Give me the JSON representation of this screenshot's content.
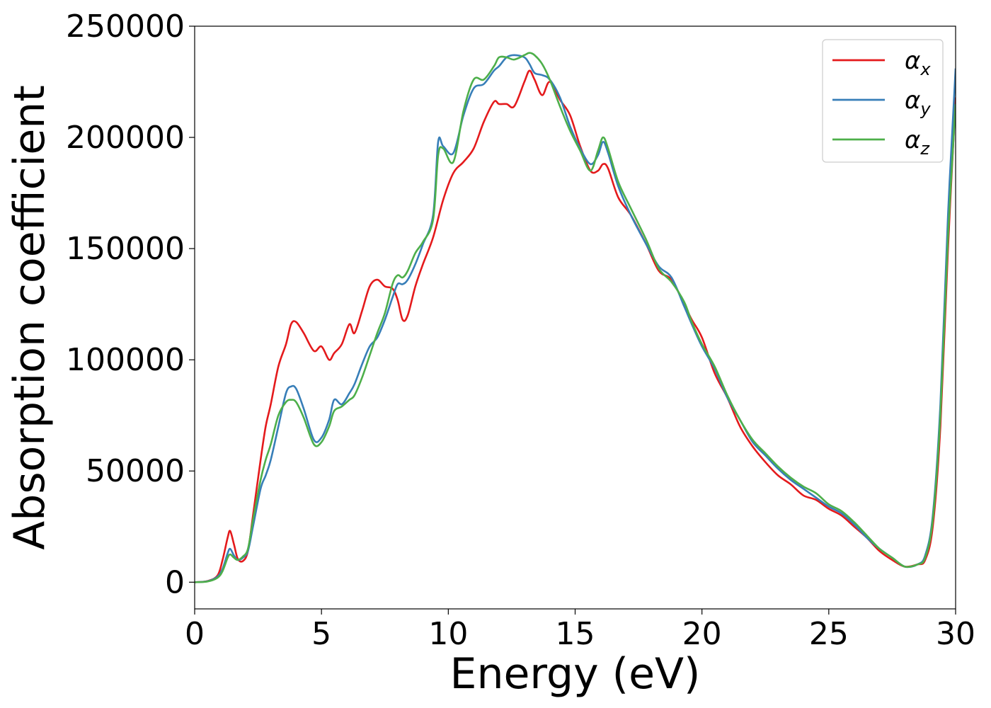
{
  "chart_data": {
    "type": "line",
    "title": "",
    "xlabel": "Energy (eV)",
    "ylabel": "Absorption coefficient",
    "xlim": [
      0,
      30
    ],
    "ylim": [
      -12000,
      250000
    ],
    "xticks": [
      0,
      5,
      10,
      15,
      20,
      25,
      30
    ],
    "yticks": [
      0,
      50000,
      100000,
      150000,
      200000,
      250000
    ],
    "xtick_labels": [
      "0",
      "5",
      "10",
      "15",
      "20",
      "25",
      "30"
    ],
    "ytick_labels": [
      "0",
      "50000",
      "100000",
      "150000",
      "200000",
      "250000"
    ],
    "grid": false,
    "legend_position": "top-right",
    "series": [
      {
        "name": "α",
        "subscript": "x",
        "color": "#e41a1c",
        "x": [
          0,
          0.5,
          0.9,
          1.1,
          1.3,
          1.4,
          1.55,
          1.7,
          1.9,
          2.1,
          2.3,
          2.6,
          2.8,
          3.0,
          3.3,
          3.6,
          3.8,
          4.0,
          4.3,
          4.7,
          5.0,
          5.3,
          5.5,
          5.8,
          6.1,
          6.3,
          6.6,
          6.9,
          7.2,
          7.5,
          7.8,
          8.0,
          8.2,
          8.4,
          8.7,
          9.0,
          9.4,
          9.8,
          10.2,
          10.6,
          11.0,
          11.4,
          11.8,
          12.0,
          12.3,
          12.6,
          13.0,
          13.2,
          13.4,
          13.7,
          14.0,
          14.4,
          14.8,
          15.2,
          15.6,
          15.9,
          16.1,
          16.3,
          16.7,
          17.2,
          17.8,
          18.3,
          18.8,
          19.3,
          19.6,
          20.0,
          20.5,
          21.0,
          21.5,
          22.0,
          22.5,
          23.0,
          23.5,
          24.0,
          24.5,
          25.0,
          25.5,
          26.0,
          26.5,
          27.0,
          27.5,
          28.0,
          28.5,
          28.8,
          29.1,
          29.4,
          29.7,
          30.0
        ],
        "values": [
          0,
          500,
          3000,
          10000,
          20000,
          23000,
          17000,
          10500,
          9500,
          14000,
          30000,
          55000,
          70000,
          80000,
          97000,
          107000,
          116000,
          117000,
          112000,
          104000,
          106000,
          100000,
          103000,
          107000,
          116000,
          112000,
          122000,
          133000,
          136000,
          133000,
          132000,
          127000,
          118000,
          120000,
          133000,
          143000,
          155000,
          172000,
          184000,
          189000,
          195000,
          207000,
          216000,
          215000,
          215000,
          214000,
          225000,
          230000,
          226000,
          219000,
          225000,
          217000,
          210000,
          196000,
          185000,
          185000,
          188000,
          186000,
          173000,
          165000,
          152000,
          140000,
          136000,
          125000,
          118000,
          110000,
          94000,
          83000,
          70000,
          61000,
          54000,
          48000,
          44000,
          39000,
          37000,
          33000,
          30000,
          25000,
          20000,
          14000,
          10000,
          7000,
          8000,
          10000,
          25000,
          70000,
          150000,
          218000
        ]
      },
      {
        "name": "α",
        "subscript": "y",
        "color": "#377eb8",
        "x": [
          0,
          0.5,
          0.9,
          1.1,
          1.3,
          1.4,
          1.55,
          1.7,
          1.9,
          2.1,
          2.3,
          2.6,
          2.8,
          3.0,
          3.3,
          3.6,
          3.8,
          4.0,
          4.3,
          4.7,
          5.0,
          5.3,
          5.5,
          5.8,
          6.1,
          6.3,
          6.6,
          6.9,
          7.2,
          7.5,
          7.8,
          8.0,
          8.2,
          8.4,
          8.7,
          9.0,
          9.4,
          9.6,
          9.8,
          10.2,
          10.6,
          11.0,
          11.4,
          11.8,
          12.0,
          12.3,
          12.6,
          13.0,
          13.2,
          13.4,
          13.7,
          14.0,
          14.4,
          14.8,
          15.2,
          15.6,
          15.9,
          16.1,
          16.3,
          16.7,
          17.2,
          17.8,
          18.3,
          18.8,
          19.3,
          19.6,
          20.0,
          20.5,
          21.0,
          21.5,
          22.0,
          22.5,
          23.0,
          23.5,
          24.0,
          24.5,
          25.0,
          25.5,
          26.0,
          26.5,
          27.0,
          27.5,
          28.0,
          28.5,
          28.8,
          29.1,
          29.4,
          29.7,
          30.0
        ],
        "values": [
          0,
          400,
          2500,
          6000,
          13000,
          15000,
          12000,
          10000,
          11000,
          14000,
          25000,
          42000,
          48000,
          55000,
          70000,
          85000,
          88000,
          87000,
          78000,
          64000,
          65000,
          73000,
          82000,
          80000,
          85000,
          89000,
          98000,
          106000,
          110000,
          118000,
          128000,
          134000,
          134000,
          136000,
          143000,
          152000,
          165000,
          198000,
          196000,
          193000,
          210000,
          222000,
          224000,
          230000,
          232000,
          236000,
          237000,
          236000,
          233000,
          229000,
          228000,
          226000,
          218000,
          205000,
          195000,
          188000,
          192000,
          198000,
          193000,
          178000,
          165000,
          152000,
          142000,
          137000,
          124000,
          116000,
          106000,
          96000,
          83000,
          73000,
          63000,
          57000,
          51000,
          46000,
          42000,
          38000,
          34000,
          31000,
          26000,
          20000,
          15000,
          11000,
          7000,
          8000,
          12000,
          30000,
          80000,
          165000,
          231000
        ]
      },
      {
        "name": "α",
        "subscript": "z",
        "color": "#4daf4a",
        "x": [
          0,
          0.5,
          0.9,
          1.1,
          1.3,
          1.4,
          1.55,
          1.7,
          1.9,
          2.1,
          2.3,
          2.6,
          2.8,
          3.0,
          3.3,
          3.6,
          3.8,
          4.0,
          4.3,
          4.7,
          5.0,
          5.3,
          5.5,
          5.8,
          6.1,
          6.3,
          6.6,
          6.9,
          7.2,
          7.5,
          7.8,
          8.0,
          8.2,
          8.4,
          8.7,
          9.0,
          9.4,
          9.6,
          9.8,
          10.2,
          10.6,
          11.0,
          11.4,
          11.8,
          12.0,
          12.3,
          12.6,
          13.0,
          13.2,
          13.4,
          13.7,
          14.0,
          14.4,
          14.8,
          15.2,
          15.6,
          15.9,
          16.1,
          16.3,
          16.7,
          17.2,
          17.8,
          18.3,
          18.8,
          19.3,
          19.6,
          20.0,
          20.5,
          21.0,
          21.5,
          22.0,
          22.5,
          23.0,
          23.5,
          24.0,
          24.5,
          25.0,
          25.5,
          26.0,
          26.5,
          27.0,
          27.5,
          28.0,
          28.5,
          28.8,
          29.1,
          29.4,
          29.7,
          30.0
        ],
        "values": [
          0,
          300,
          2000,
          5000,
          11000,
          12500,
          11000,
          10000,
          11500,
          15000,
          28000,
          46000,
          55000,
          62000,
          75000,
          81000,
          82000,
          81000,
          74000,
          62000,
          63000,
          70000,
          77000,
          79000,
          82000,
          84000,
          92000,
          102000,
          112000,
          121000,
          134000,
          138000,
          137000,
          140000,
          148000,
          153000,
          163000,
          192000,
          195000,
          189000,
          212000,
          226000,
          226000,
          232000,
          236000,
          236000,
          235000,
          237000,
          238000,
          237000,
          233000,
          226000,
          214000,
          203000,
          194000,
          185000,
          194000,
          200000,
          195000,
          180000,
          168000,
          154000,
          141000,
          135000,
          126000,
          117000,
          107000,
          97000,
          84000,
          73000,
          64000,
          58000,
          52000,
          47000,
          43000,
          40000,
          35000,
          32000,
          27000,
          21000,
          15000,
          11000,
          7000,
          8000,
          11000,
          28000,
          75000,
          155000,
          215000
        ]
      }
    ]
  }
}
